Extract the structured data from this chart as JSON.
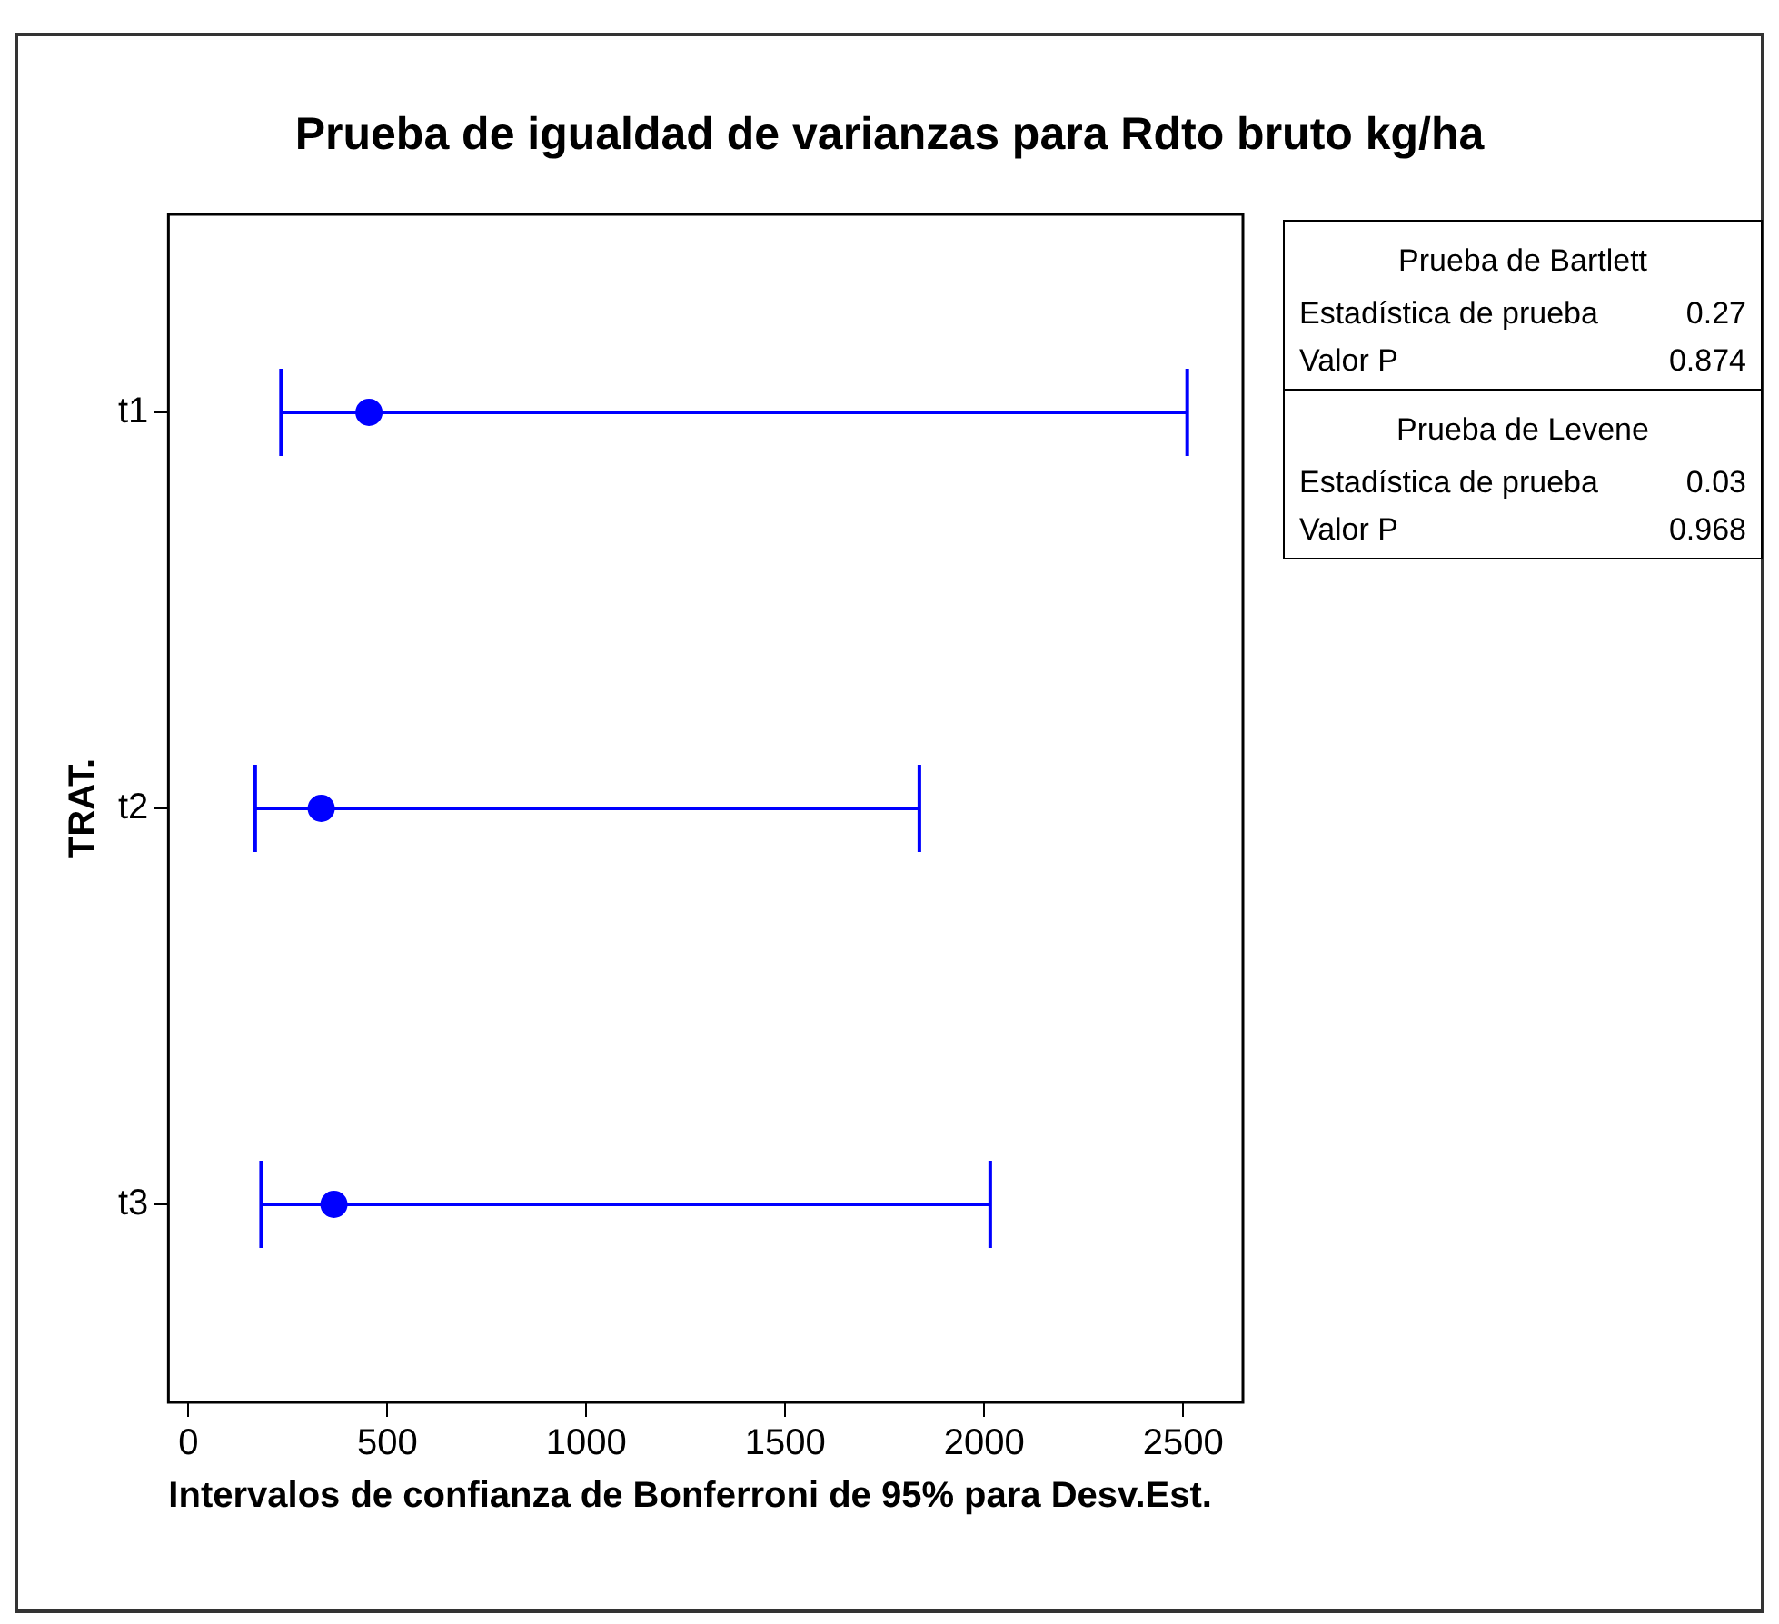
{
  "chart_data": {
    "type": "scatter",
    "orientation": "horizontal",
    "title": "Prueba de igualdad de varianzas para Rdto bruto kg/ha",
    "xlabel": "Intervalos de confianza de Bonferroni de 95% para Desv.Est.",
    "ylabel": "TRAT.",
    "categories": [
      "t1",
      "t2",
      "t3"
    ],
    "series": [
      {
        "color": "#0000ff",
        "values": [
          454,
          334,
          366
        ],
        "errors": [
          [
            233,
            2510
          ],
          [
            168,
            1837
          ],
          [
            183,
            2015
          ]
        ]
      }
    ],
    "xlim": [
      -50,
      2650
    ],
    "xticks": [
      0,
      500,
      1000,
      1500,
      2000,
      2500
    ],
    "grid": false,
    "legend": false,
    "marker": "circle",
    "annotations": [
      "Prueba de Bartlett",
      "Estadística de prueba",
      "0.27",
      "Valor P",
      "0.874",
      "Prueba de Levene",
      "Estadística de prueba",
      "0.03",
      "Valor P",
      "0.968"
    ]
  }
}
